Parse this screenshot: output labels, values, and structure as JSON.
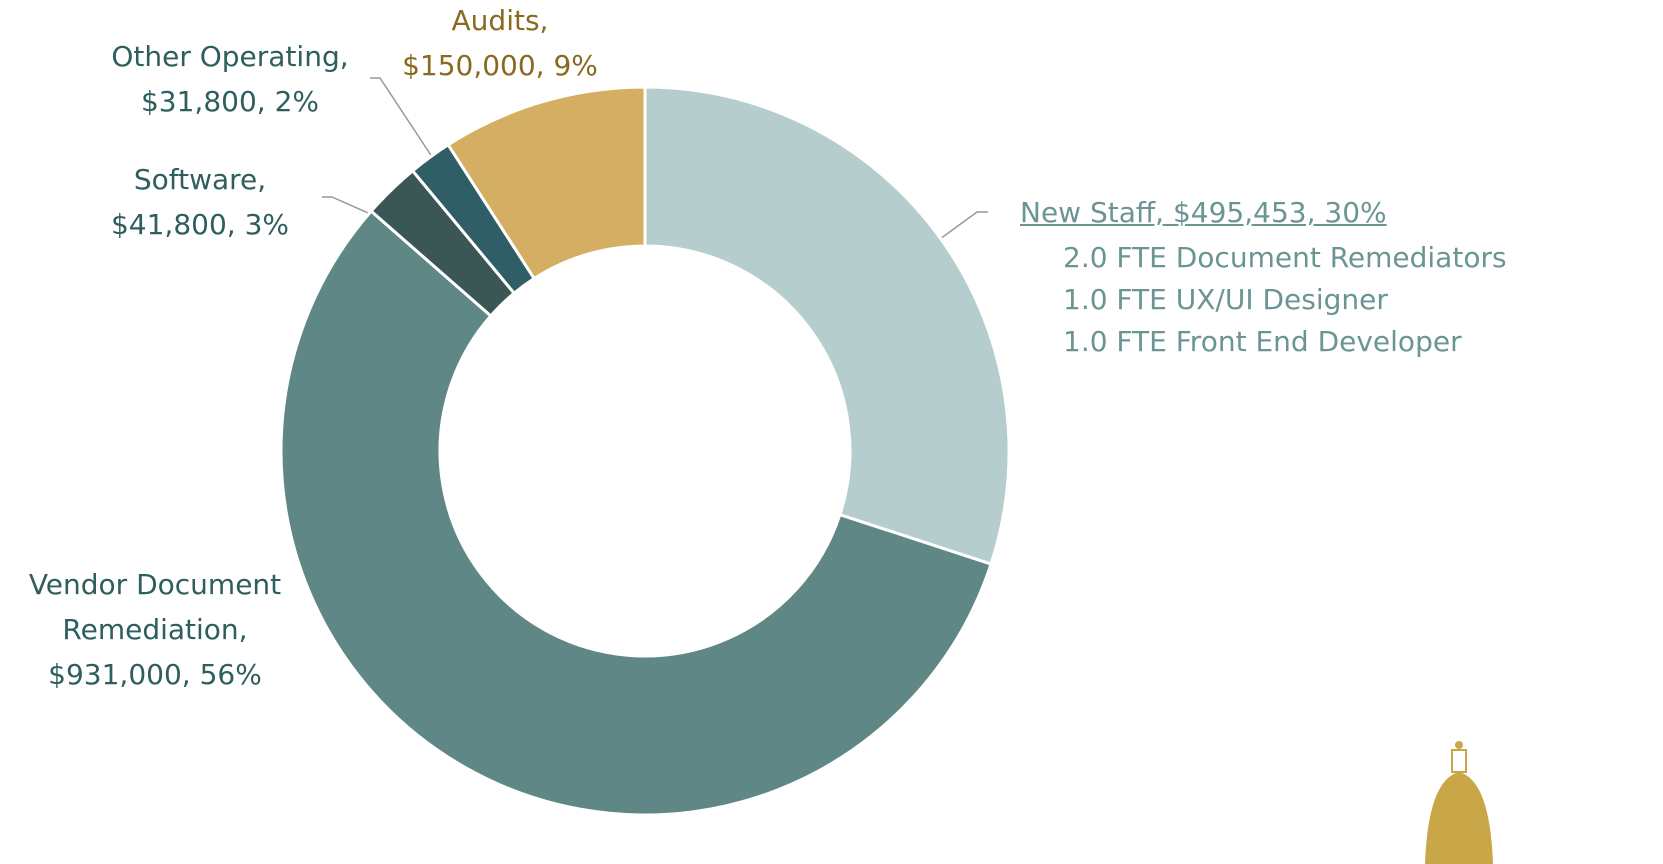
{
  "chart_data": {
    "type": "donut",
    "categories": [
      "New Staff,",
      "Vendor Document Remediation,",
      "Software,",
      "Other Operating,",
      "Audits,"
    ],
    "values": [
      495453,
      931000,
      41800,
      31800,
      150000
    ],
    "value_labels": [
      "$495,453, 30%",
      "$931,000, 56%",
      "$41,800, 3%",
      "$31,800, 2%",
      "$150,000, 9%"
    ],
    "colors": [
      "#b5cdcc",
      "#5e8785",
      "#3a5655",
      "#2f5e66",
      "#d4ae62"
    ],
    "label_colors": [
      "#6a9593",
      "#2f5e5e",
      "#2f5e5e",
      "#2f5e5e",
      "#8a6a20"
    ],
    "annotations": [
      "2.0 FTE Document Remediators",
      "1.0 FTE UX/UI Designer",
      "1.0 FTE Front End Developer"
    ]
  }
}
